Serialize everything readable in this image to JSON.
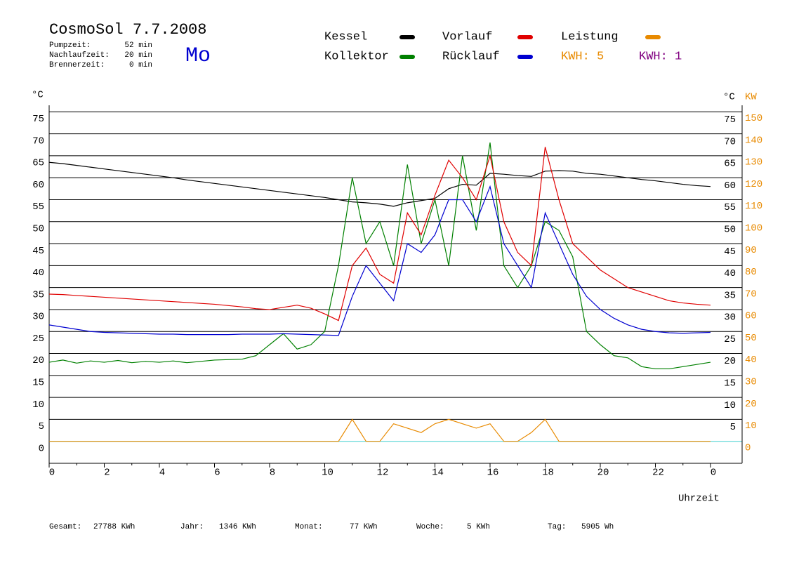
{
  "chart_data": {
    "type": "line",
    "title": "CosmoSol 7.7.2008",
    "day": "Mo",
    "info": [
      {
        "label": "Pumpzeit:",
        "value": "52 min"
      },
      {
        "label": "Nachlaufzeit:",
        "value": "20 min"
      },
      {
        "label": "Brennerzeit:",
        "value": "0 min"
      }
    ],
    "kwh_labels": [
      {
        "text": "KWH: 5",
        "color": "#e88a00"
      },
      {
        "text": "KWH: 1",
        "color": "#800080"
      }
    ],
    "y_label": "°C",
    "y_label_right": "°C",
    "y2_label": "KW",
    "x_label": "Uhrzeit",
    "footer": [
      {
        "label": "Gesamt:",
        "value": "27788 KWh"
      },
      {
        "label": "Jahr:",
        "value": "1346 KWh"
      },
      {
        "label": "Monat:",
        "value": "77 KWh"
      },
      {
        "label": "Woche:",
        "value": "5 KWh"
      },
      {
        "label": "Tag:",
        "value": "5905 Wh"
      }
    ],
    "x": [
      0,
      0.5,
      1,
      1.5,
      2,
      2.5,
      3,
      3.5,
      4,
      4.5,
      5,
      5.5,
      6,
      6.5,
      7,
      7.5,
      8,
      8.5,
      9,
      9.5,
      10,
      10.5,
      11,
      11.5,
      12,
      12.5,
      13,
      13.5,
      14,
      14.5,
      15,
      15.5,
      16,
      16.5,
      17,
      17.5,
      18,
      18.5,
      19,
      19.5,
      20,
      20.5,
      21,
      21.5,
      22,
      22.5,
      23,
      23.5,
      24
    ],
    "series": [
      {
        "name": "Kessel",
        "color": "#000000",
        "values": [
          63.5,
          63.2,
          62.8,
          62.4,
          62,
          61.6,
          61.2,
          60.8,
          60.4,
          60,
          59.5,
          59.1,
          58.7,
          58.3,
          57.9,
          57.5,
          57.1,
          56.7,
          56.3,
          55.9,
          55.5,
          55,
          54.5,
          54.3,
          54,
          53.5,
          54.3,
          54.8,
          55.3,
          57.5,
          58.5,
          58.3,
          61,
          60.8,
          60.5,
          60.3,
          61.5,
          61.6,
          61.5,
          61,
          60.8,
          60.4,
          60,
          59.6,
          59.3,
          58.9,
          58.5,
          58.2,
          58
        ]
      },
      {
        "name": "Kollektor",
        "color": "#008000",
        "values": [
          18,
          18.5,
          17.8,
          18.3,
          18,
          18.4,
          17.9,
          18.2,
          18,
          18.3,
          17.9,
          18.2,
          18.5,
          18.6,
          18.7,
          19.5,
          22,
          24.5,
          21,
          22,
          25,
          40,
          60,
          45,
          50,
          40,
          63,
          45,
          55,
          40,
          65,
          48,
          68,
          40,
          35,
          40,
          50,
          48,
          42,
          25,
          22,
          19.5,
          19,
          17,
          16.5,
          16.5,
          17,
          17.5,
          18
        ]
      },
      {
        "name": "Vorlauf",
        "color": "#e00000",
        "values": [
          33.5,
          33.4,
          33.2,
          33,
          32.8,
          32.6,
          32.4,
          32.2,
          32,
          31.8,
          31.6,
          31.4,
          31.2,
          30.9,
          30.6,
          30.2,
          30,
          30.5,
          31,
          30.3,
          29,
          27.5,
          40,
          44,
          38,
          36,
          52,
          47,
          56,
          64,
          60,
          55,
          65,
          50,
          43,
          40,
          67,
          55,
          45,
          42,
          39,
          37,
          35,
          34,
          33,
          32,
          31.5,
          31.2,
          31
        ]
      },
      {
        "name": "Rücklauf",
        "color": "#0000d0",
        "values": [
          26.5,
          26,
          25.5,
          25,
          24.8,
          24.7,
          24.6,
          24.5,
          24.4,
          24.4,
          24.3,
          24.3,
          24.3,
          24.3,
          24.4,
          24.4,
          24.4,
          24.5,
          24.4,
          24.3,
          24.2,
          24.1,
          33,
          40,
          36,
          32,
          45,
          43,
          47,
          55,
          55,
          50,
          58,
          45,
          40,
          35,
          52,
          45,
          38,
          33,
          30,
          28,
          26.5,
          25.5,
          25,
          24.7,
          24.6,
          24.7,
          24.8
        ]
      },
      {
        "name": "Leistung",
        "color": "#e88a00",
        "axis": "y2",
        "values": [
          0,
          0,
          0,
          0,
          0,
          0,
          0,
          0,
          0,
          0,
          0,
          0,
          0,
          0,
          0,
          0,
          0,
          0,
          0,
          0,
          0,
          0,
          10,
          0,
          0,
          8,
          6,
          4,
          8,
          10,
          8,
          6,
          8,
          0,
          0,
          4,
          10,
          0,
          0,
          0,
          0,
          0,
          0,
          0,
          0,
          0,
          0,
          0,
          0
        ]
      }
    ],
    "xlim": [
      0,
      24
    ],
    "xticks": [
      0,
      2,
      4,
      6,
      8,
      10,
      12,
      14,
      16,
      18,
      20,
      22,
      {
        "value": 24,
        "label": "0"
      }
    ],
    "ylim": [
      -5,
      80
    ],
    "yticks": [
      0,
      5,
      10,
      15,
      20,
      25,
      30,
      35,
      40,
      45,
      50,
      55,
      60,
      65,
      70,
      75
    ],
    "yticks_right": [
      5,
      10,
      15,
      20,
      25,
      30,
      35,
      40,
      45,
      50,
      55,
      60,
      65,
      70,
      75
    ],
    "y2lim": [
      -10,
      160
    ],
    "y2ticks": [
      0,
      10,
      20,
      30,
      40,
      50,
      60,
      70,
      80,
      90,
      100,
      110,
      120,
      130,
      140,
      150
    ],
    "y2_color": "#e88a00",
    "day_color": "#0000d0",
    "grid": true
  }
}
